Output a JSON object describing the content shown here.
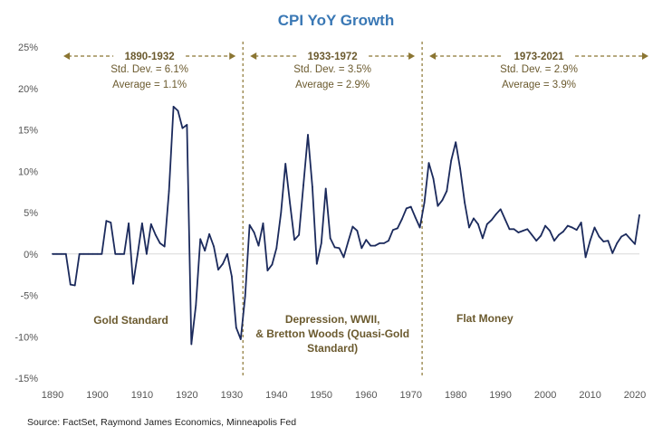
{
  "chart_data": {
    "type": "line",
    "title": "CPI YoY Growth",
    "xlabel": "",
    "ylabel": "",
    "xlim": [
      1890,
      2021
    ],
    "ylim": [
      -15,
      25
    ],
    "x_ticks": [
      1890,
      1900,
      1910,
      1920,
      1930,
      1940,
      1950,
      1960,
      1970,
      1980,
      1990,
      2000,
      2010,
      2020
    ],
    "y_ticks": [
      25,
      20,
      15,
      10,
      5,
      0,
      -5,
      -10,
      -15
    ],
    "y_tick_labels": [
      "25%",
      "20%",
      "15%",
      "10%",
      "5%",
      "0%",
      "-5%",
      "-10%",
      "-15%"
    ],
    "line_color": "#1b2a5c",
    "accent_color": "#8b7532",
    "series": [
      {
        "x": [
          1890,
          1891,
          1892,
          1893,
          1894,
          1895,
          1896,
          1897,
          1898,
          1899,
          1900,
          1901,
          1902,
          1903,
          1904,
          1905,
          1906,
          1907,
          1908,
          1909,
          1910,
          1911,
          1912,
          1913,
          1914,
          1915,
          1916,
          1917,
          1918,
          1919,
          1920,
          1921,
          1922,
          1923,
          1924,
          1925,
          1926,
          1927,
          1928,
          1929,
          1930,
          1931,
          1932,
          1933,
          1934,
          1935,
          1936,
          1937,
          1938,
          1939,
          1940,
          1941,
          1942,
          1943,
          1944,
          1945,
          1946,
          1947,
          1948,
          1949,
          1950,
          1951,
          1952,
          1953,
          1954,
          1955,
          1956,
          1957,
          1958,
          1959,
          1960,
          1961,
          1962,
          1963,
          1964,
          1965,
          1966,
          1967,
          1968,
          1969,
          1970,
          1971,
          1972,
          1973,
          1974,
          1975,
          1976,
          1977,
          1978,
          1979,
          1980,
          1981,
          1982,
          1983,
          1984,
          1985,
          1986,
          1987,
          1988,
          1989,
          1990,
          1991,
          1992,
          1993,
          1994,
          1995,
          1996,
          1997,
          1998,
          1999,
          2000,
          2001,
          2002,
          2003,
          2004,
          2005,
          2006,
          2007,
          2008,
          2009,
          2010,
          2011,
          2012,
          2013,
          2014,
          2015,
          2016,
          2017,
          2018,
          2019,
          2020,
          2021
        ],
        "values": [
          0,
          0,
          0,
          0,
          -3.7,
          -3.8,
          0,
          0,
          0,
          0,
          0,
          0,
          4,
          3.8,
          0,
          0,
          0,
          3.7,
          -3.6,
          0,
          3.7,
          0,
          3.6,
          2.3,
          1.3,
          0.9,
          7.6,
          17.8,
          17.3,
          15.2,
          15.6,
          -10.9,
          -6.2,
          1.8,
          0.4,
          2.4,
          0.9,
          -1.9,
          -1.2,
          0,
          -2.7,
          -8.9,
          -10.3,
          -5.1,
          3.5,
          2.6,
          1,
          3.7,
          -2,
          -1.3,
          0.7,
          5,
          10.9,
          6.1,
          1.7,
          2.3,
          8.3,
          14.4,
          8.1,
          -1.2,
          1.3,
          7.9,
          1.9,
          0.8,
          0.7,
          -0.4,
          1.5,
          3.3,
          2.8,
          0.7,
          1.7,
          1,
          1,
          1.3,
          1.3,
          1.6,
          2.9,
          3.1,
          4.2,
          5.5,
          5.7,
          4.4,
          3.2,
          6.2,
          11,
          9.1,
          5.8,
          6.5,
          7.6,
          11.3,
          13.5,
          10.3,
          6.2,
          3.2,
          4.3,
          3.6,
          1.9,
          3.6,
          4.1,
          4.8,
          5.4,
          4.2,
          3,
          3,
          2.6,
          2.8,
          3,
          2.3,
          1.6,
          2.2,
          3.4,
          2.8,
          1.6,
          2.3,
          2.7,
          3.4,
          3.2,
          2.9,
          3.8,
          -0.4,
          1.6,
          3.2,
          2.1,
          1.5,
          1.6,
          0.1,
          1.3,
          2.1,
          2.4,
          1.8,
          1.2,
          4.7
        ]
      }
    ],
    "divider_years": [
      1932.5,
      1972.5
    ],
    "eras": [
      {
        "range": "1890-1932",
        "std": "Std. Dev. = 6.1%",
        "avg": "Average = 1.1%"
      },
      {
        "range": "1933-1972",
        "std": "Std. Dev. = 3.5%",
        "avg": "Average = 2.9%"
      },
      {
        "range": "1973-2021",
        "std": "Std. Dev. = 2.9%",
        "avg": "Average = 3.9%"
      }
    ],
    "regimes": [
      {
        "lines": [
          "Gold Standard"
        ]
      },
      {
        "lines": [
          "Depression, WWII,",
          "& Bretton Woods (Quasi-Gold",
          "Standard)"
        ]
      },
      {
        "lines": [
          "Flat Money"
        ]
      }
    ]
  },
  "source": "Source: FactSet, Raymond James Economics, Minneapolis Fed"
}
